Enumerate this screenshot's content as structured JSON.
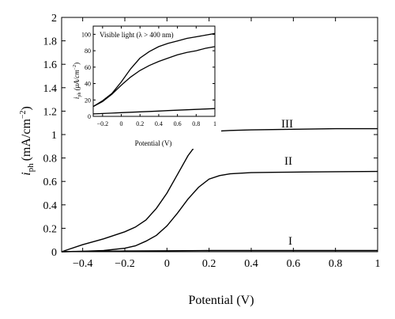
{
  "chart_data": [
    {
      "type": "line",
      "xlabel": "Potential (V)",
      "ylabel_main": "i",
      "ylabel_sub": "ph",
      "ylabel_unit": "(mA/cm",
      "ylabel_sup": "−2",
      "ylabel_close": ")",
      "xlim": [
        -0.5,
        1
      ],
      "ylim": [
        0,
        2
      ],
      "xticks": [
        -0.4,
        -0.2,
        0,
        0.2,
        0.4,
        0.6,
        0.8,
        1
      ],
      "xtick_labels": [
        "−0.4",
        "−0.2",
        "0",
        "0.2",
        "0.4",
        "0.6",
        "0.8",
        "1"
      ],
      "yticks": [
        0,
        0.2,
        0.4,
        0.6,
        0.8,
        1,
        1.2,
        1.4,
        1.6,
        1.8,
        2
      ],
      "ytick_labels": [
        "0",
        "0.2",
        "0.4",
        "0.6",
        "0.8",
        "1",
        "1.2",
        "1.4",
        "1.6",
        "1.8",
        "2"
      ],
      "series": [
        {
          "name": "I",
          "x": [
            -0.5,
            -0.4,
            -0.2,
            0,
            0.2,
            0.4,
            0.6,
            0.8,
            1
          ],
          "y": [
            0.0,
            0.003,
            0.006,
            0.008,
            0.01,
            0.01,
            0.01,
            0.01,
            0.01
          ]
        },
        {
          "name": "II",
          "x": [
            -0.5,
            -0.4,
            -0.3,
            -0.2,
            -0.15,
            -0.1,
            -0.05,
            0,
            0.05,
            0.1,
            0.15,
            0.2,
            0.25,
            0.3,
            0.4,
            0.5,
            0.6,
            0.8,
            1
          ],
          "y": [
            0.0,
            0.004,
            0.01,
            0.03,
            0.05,
            0.09,
            0.14,
            0.22,
            0.33,
            0.45,
            0.55,
            0.62,
            0.65,
            0.665,
            0.675,
            0.678,
            0.68,
            0.683,
            0.685
          ]
        },
        {
          "name": "III",
          "x": [
            -0.5,
            -0.4,
            -0.3,
            -0.2,
            -0.15,
            -0.1,
            -0.05,
            0,
            0.05,
            0.1,
            0.15,
            0.2,
            0.25,
            0.3,
            0.4,
            0.6,
            0.8,
            1
          ],
          "y": [
            0.0,
            0.06,
            0.11,
            0.17,
            0.21,
            0.27,
            0.37,
            0.5,
            0.66,
            0.82,
            0.94,
            1.01,
            1.03,
            1.035,
            1.04,
            1.045,
            1.05,
            1.05
          ]
        }
      ]
    },
    {
      "type": "line",
      "annotation": "Visible light (λ > 400 nm)",
      "xlabel": "Potential (V)",
      "ylabel": "i_ph (μA/cm⁻²)",
      "ylabel_main": "i",
      "ylabel_sub": "ph",
      "ylabel_unit": " (μA/cm",
      "ylabel_sup": "−2",
      "ylabel_close": ")",
      "xlim": [
        -0.3,
        1
      ],
      "ylim": [
        0,
        110
      ],
      "xticks": [
        -0.2,
        0,
        0.2,
        0.4,
        0.6,
        0.8,
        1
      ],
      "xtick_labels": [
        "−0.2",
        "0",
        "0.2",
        "0.4",
        "0.6",
        "0.8",
        "1"
      ],
      "yticks": [
        0,
        20,
        40,
        60,
        80,
        100
      ],
      "ytick_labels": [
        "0",
        "20",
        "40",
        "60",
        "80",
        "100"
      ],
      "series": [
        {
          "x": [
            -0.3,
            -0.2,
            -0.1,
            0,
            0.1,
            0.2,
            0.3,
            0.4,
            0.5,
            0.6,
            0.7,
            0.8,
            0.9,
            1
          ],
          "y": [
            3,
            3.5,
            4,
            4.5,
            5,
            5.5,
            6,
            6.5,
            7,
            7.5,
            8,
            8.5,
            9,
            9.5
          ]
        },
        {
          "x": [
            -0.3,
            -0.2,
            -0.1,
            0,
            0.1,
            0.2,
            0.3,
            0.4,
            0.5,
            0.6,
            0.7,
            0.8,
            0.9,
            1
          ],
          "y": [
            12,
            18,
            27,
            38,
            48,
            56,
            62,
            67,
            71,
            75,
            78,
            80,
            83,
            85
          ]
        },
        {
          "x": [
            -0.3,
            -0.2,
            -0.1,
            0,
            0.1,
            0.2,
            0.3,
            0.4,
            0.5,
            0.6,
            0.7,
            0.8,
            0.9,
            1
          ],
          "y": [
            12,
            19,
            28,
            42,
            58,
            71,
            79,
            85,
            89,
            92,
            95,
            97,
            99,
            101
          ]
        }
      ]
    }
  ]
}
